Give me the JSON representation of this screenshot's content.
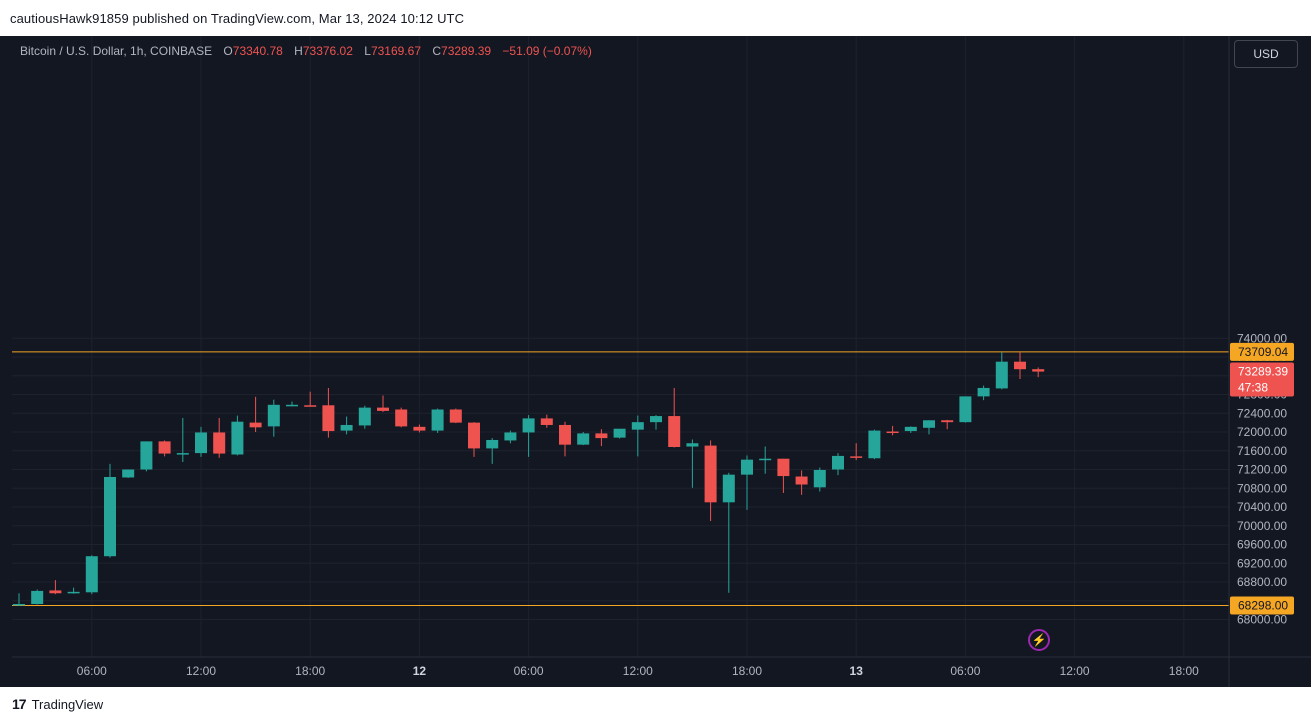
{
  "header": {
    "published_text": "cautiousHawk91859 published on TradingView.com, Mar 13, 2024 10:12 UTC"
  },
  "legend": {
    "symbol": "Bitcoin / U.S. Dollar, 1h, COINBASE",
    "o_label": "O",
    "o_value": "73340.78",
    "h_label": "H",
    "h_value": "73376.02",
    "l_label": "L",
    "l_value": "73169.67",
    "c_label": "C",
    "c_value": "73289.39",
    "change": "−51.09 (−0.07%)"
  },
  "currency_button": "USD",
  "price_tags": {
    "upper_level": "73709.04",
    "lower_level": "68298.00",
    "last_price": "73289.39",
    "countdown": "47:38"
  },
  "footer": {
    "brand": "TradingView"
  },
  "icons": {
    "flash": "lightning-icon",
    "logo": "tradingview-logo-icon"
  },
  "colors": {
    "up": "#26a69a",
    "down": "#ef5350",
    "level_line": "#f5a623",
    "background": "#131722",
    "grid": "#1e222d",
    "axis_text": "#b2b5be"
  },
  "chart_data": {
    "type": "candlestick",
    "title": "Bitcoin / U.S. Dollar, 1h, COINBASE",
    "ylim": [
      67800,
      74200
    ],
    "y_ticks": [
      68000,
      68400,
      68800,
      69200,
      69600,
      70000,
      70400,
      70800,
      71200,
      71600,
      72000,
      72400,
      72800,
      73200,
      73600,
      74000
    ],
    "x_ticks": [
      {
        "label": "06:00",
        "index": 4,
        "bold": false
      },
      {
        "label": "12:00",
        "index": 10,
        "bold": false
      },
      {
        "label": "18:00",
        "index": 16,
        "bold": false
      },
      {
        "label": "12",
        "index": 22,
        "bold": true
      },
      {
        "label": "06:00",
        "index": 28,
        "bold": false
      },
      {
        "label": "12:00",
        "index": 34,
        "bold": false
      },
      {
        "label": "18:00",
        "index": 40,
        "bold": false
      },
      {
        "label": "13",
        "index": 46,
        "bold": true
      },
      {
        "label": "06:00",
        "index": 52,
        "bold": false
      },
      {
        "label": "12:00",
        "index": 58,
        "bold": false
      },
      {
        "label": "18:00",
        "index": 64,
        "bold": false
      }
    ],
    "horizontal_levels": [
      73709.04,
      68298.0
    ],
    "last_price": 73289.39,
    "candles": [
      {
        "o": 68320,
        "h": 68560,
        "l": 68290,
        "c": 68330
      },
      {
        "o": 68330,
        "h": 68640,
        "l": 68320,
        "c": 68610
      },
      {
        "o": 68620,
        "h": 68840,
        "l": 68540,
        "c": 68560
      },
      {
        "o": 68580,
        "h": 68680,
        "l": 68550,
        "c": 68590
      },
      {
        "o": 68580,
        "h": 69370,
        "l": 68540,
        "c": 69350
      },
      {
        "o": 69350,
        "h": 71320,
        "l": 69320,
        "c": 71040
      },
      {
        "o": 71030,
        "h": 71200,
        "l": 71020,
        "c": 71200
      },
      {
        "o": 71200,
        "h": 71800,
        "l": 71160,
        "c": 71800
      },
      {
        "o": 71800,
        "h": 71820,
        "l": 71480,
        "c": 71540
      },
      {
        "o": 71520,
        "h": 72300,
        "l": 71360,
        "c": 71550
      },
      {
        "o": 71550,
        "h": 72110,
        "l": 71470,
        "c": 71990
      },
      {
        "o": 71990,
        "h": 72300,
        "l": 71450,
        "c": 71540
      },
      {
        "o": 71520,
        "h": 72350,
        "l": 71500,
        "c": 72220
      },
      {
        "o": 72200,
        "h": 72750,
        "l": 72000,
        "c": 72100
      },
      {
        "o": 72120,
        "h": 72690,
        "l": 71900,
        "c": 72580
      },
      {
        "o": 72580,
        "h": 72650,
        "l": 72550,
        "c": 72580
      },
      {
        "o": 72570,
        "h": 72860,
        "l": 72550,
        "c": 72550
      },
      {
        "o": 72570,
        "h": 72940,
        "l": 71880,
        "c": 72020
      },
      {
        "o": 72030,
        "h": 72330,
        "l": 71950,
        "c": 72150
      },
      {
        "o": 72140,
        "h": 72560,
        "l": 72070,
        "c": 72520
      },
      {
        "o": 72520,
        "h": 72780,
        "l": 72430,
        "c": 72450
      },
      {
        "o": 72480,
        "h": 72520,
        "l": 72100,
        "c": 72120
      },
      {
        "o": 72110,
        "h": 72160,
        "l": 71990,
        "c": 72030
      },
      {
        "o": 72030,
        "h": 72500,
        "l": 71980,
        "c": 72480
      },
      {
        "o": 72480,
        "h": 72500,
        "l": 72190,
        "c": 72200
      },
      {
        "o": 72200,
        "h": 72210,
        "l": 71470,
        "c": 71650
      },
      {
        "o": 71650,
        "h": 71870,
        "l": 71320,
        "c": 71830
      },
      {
        "o": 71820,
        "h": 72030,
        "l": 71760,
        "c": 71990
      },
      {
        "o": 71990,
        "h": 72360,
        "l": 71470,
        "c": 72290
      },
      {
        "o": 72290,
        "h": 72370,
        "l": 72090,
        "c": 72150
      },
      {
        "o": 72150,
        "h": 72220,
        "l": 71480,
        "c": 71730
      },
      {
        "o": 71730,
        "h": 72000,
        "l": 71720,
        "c": 71970
      },
      {
        "o": 71970,
        "h": 72060,
        "l": 71700,
        "c": 71870
      },
      {
        "o": 71880,
        "h": 72060,
        "l": 71860,
        "c": 72070
      },
      {
        "o": 72050,
        "h": 72350,
        "l": 71480,
        "c": 72210
      },
      {
        "o": 72210,
        "h": 72360,
        "l": 72050,
        "c": 72340
      },
      {
        "o": 72340,
        "h": 72940,
        "l": 71670,
        "c": 71680
      },
      {
        "o": 71690,
        "h": 71840,
        "l": 70810,
        "c": 71760
      },
      {
        "o": 71710,
        "h": 71820,
        "l": 70100,
        "c": 70500
      },
      {
        "o": 70500,
        "h": 71130,
        "l": 68570,
        "c": 71090
      },
      {
        "o": 71090,
        "h": 71500,
        "l": 70340,
        "c": 71410
      },
      {
        "o": 71410,
        "h": 71690,
        "l": 71110,
        "c": 71430
      },
      {
        "o": 71430,
        "h": 71430,
        "l": 70700,
        "c": 71060
      },
      {
        "o": 71050,
        "h": 71180,
        "l": 70660,
        "c": 70880
      },
      {
        "o": 70820,
        "h": 71240,
        "l": 70730,
        "c": 71190
      },
      {
        "o": 71200,
        "h": 71550,
        "l": 71080,
        "c": 71490
      },
      {
        "o": 71480,
        "h": 71760,
        "l": 71400,
        "c": 71450
      },
      {
        "o": 71440,
        "h": 72050,
        "l": 71420,
        "c": 72030
      },
      {
        "o": 72010,
        "h": 72130,
        "l": 71930,
        "c": 71990
      },
      {
        "o": 72020,
        "h": 72120,
        "l": 71980,
        "c": 72110
      },
      {
        "o": 72090,
        "h": 72250,
        "l": 71950,
        "c": 72250
      },
      {
        "o": 72250,
        "h": 72260,
        "l": 72060,
        "c": 72210
      },
      {
        "o": 72210,
        "h": 72760,
        "l": 72200,
        "c": 72760
      },
      {
        "o": 72760,
        "h": 72990,
        "l": 72680,
        "c": 72940
      },
      {
        "o": 72930,
        "h": 73700,
        "l": 72910,
        "c": 73500
      },
      {
        "o": 73500,
        "h": 73700,
        "l": 73130,
        "c": 73340
      },
      {
        "o": 73340,
        "h": 73376,
        "l": 73170,
        "c": 73289
      }
    ]
  }
}
